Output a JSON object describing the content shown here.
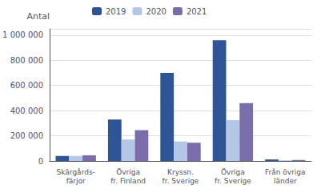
{
  "chart_data": {
    "type": "bar",
    "ylabel": "Antal",
    "categories": [
      "Skärgårds-\nfärjor",
      "Övriga\nfr. Finland",
      "Kryssn.\nfr. Sverige",
      "Övriga\nfr. Sverige",
      "Från övriga\nländer"
    ],
    "series": [
      {
        "name": "2019",
        "color": "#2F5496",
        "values": [
          40000,
          330000,
          700000,
          960000,
          12000
        ]
      },
      {
        "name": "2020",
        "color": "#B4C7E7",
        "values": [
          40000,
          170000,
          155000,
          325000,
          5000
        ]
      },
      {
        "name": "2021",
        "color": "#7B6DAA",
        "values": [
          45000,
          245000,
          145000,
          460000,
          8000
        ]
      }
    ],
    "ylim": [
      0,
      1050000
    ],
    "yticks": [
      0,
      {
        "value": 200000,
        "label": "200 000"
      },
      {
        "value": 400000,
        "label": "400 000"
      },
      {
        "value": 600000,
        "label": "600 000"
      },
      {
        "value": 800000,
        "label": "800 000"
      },
      {
        "value": 1000000,
        "label": "1 000 000"
      }
    ],
    "grid": true,
    "legend": "upper left"
  }
}
